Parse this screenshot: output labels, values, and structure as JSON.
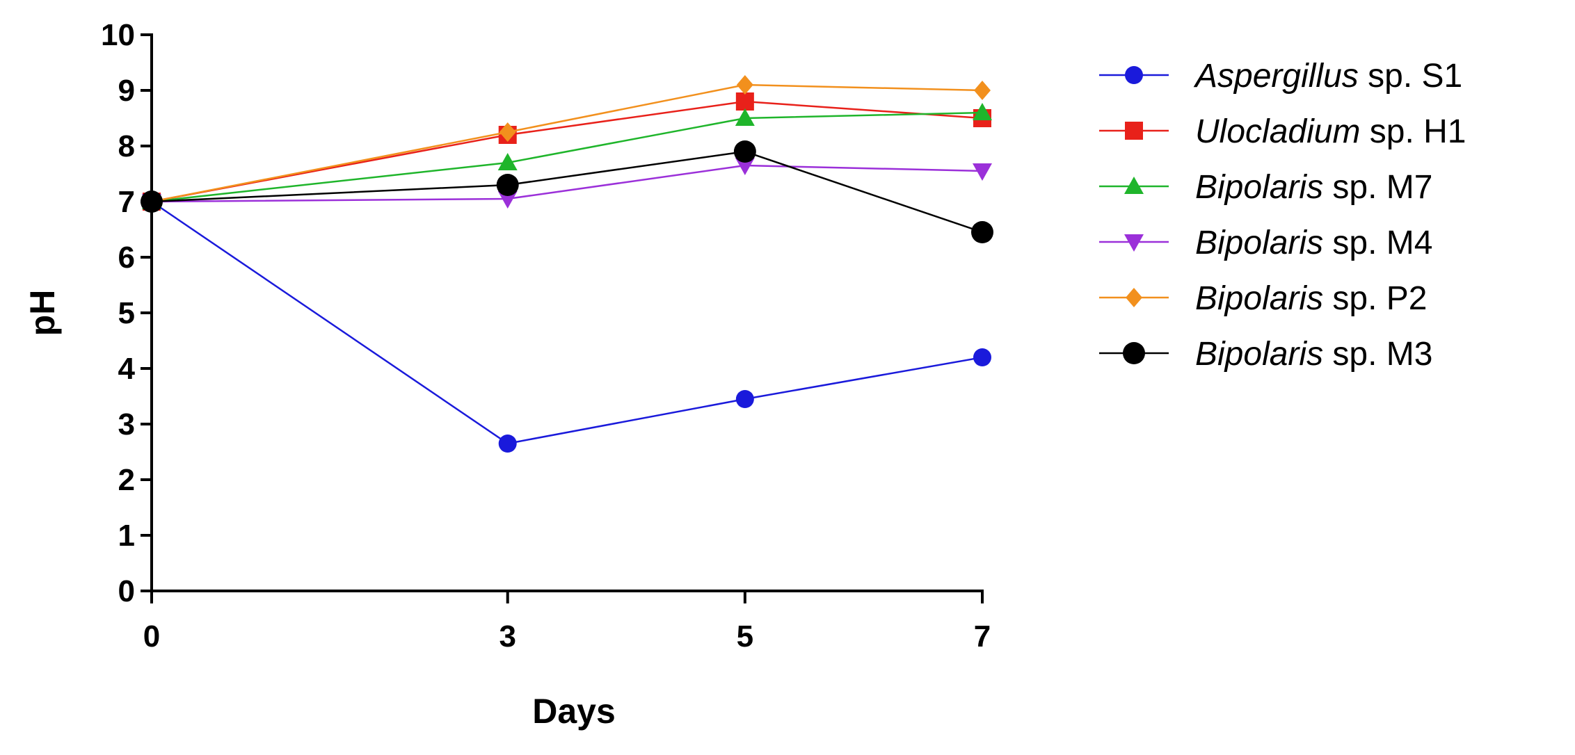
{
  "chart_data": {
    "type": "line",
    "title": "",
    "xlabel": "Days",
    "ylabel": "pH",
    "x": [
      0,
      3,
      5,
      7
    ],
    "xlim": [
      0,
      7
    ],
    "ylim": [
      0,
      10
    ],
    "xticks": [
      "0",
      "3",
      "5",
      "7"
    ],
    "yticks": [
      "0",
      "1",
      "2",
      "3",
      "4",
      "5",
      "6",
      "7",
      "8",
      "9",
      "10"
    ],
    "grid": false,
    "legend_position": "right",
    "series": [
      {
        "name_italic": "Aspergillus",
        "name_rest": " sp. S1",
        "color": "#1a1adb",
        "marker": "circle",
        "values": [
          7.0,
          2.65,
          3.45,
          4.2
        ]
      },
      {
        "name_italic": "Ulocladium",
        "name_rest": " sp. H1",
        "color": "#e8211a",
        "marker": "square",
        "values": [
          7.0,
          8.2,
          8.8,
          8.5
        ]
      },
      {
        "name_italic": "Bipolaris",
        "name_rest": " sp. M7",
        "color": "#1fb52b",
        "marker": "triangle-up",
        "values": [
          7.0,
          7.7,
          8.5,
          8.6
        ]
      },
      {
        "name_italic": "Bipolaris",
        "name_rest": " sp. M4",
        "color": "#9b30d9",
        "marker": "triangle-down",
        "values": [
          7.0,
          7.05,
          7.65,
          7.55
        ]
      },
      {
        "name_italic": "Bipolaris",
        "name_rest": " sp. P2",
        "color": "#f2901d",
        "marker": "diamond",
        "values": [
          7.0,
          8.25,
          9.1,
          9.0
        ]
      },
      {
        "name_italic": "Bipolaris",
        "name_rest": " sp. M3",
        "color": "#000000",
        "marker": "circle-large",
        "values": [
          7.0,
          7.3,
          7.9,
          6.45
        ]
      }
    ]
  }
}
